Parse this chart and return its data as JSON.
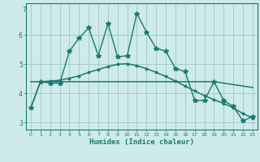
{
  "x": [
    0,
    1,
    2,
    3,
    4,
    5,
    6,
    7,
    8,
    9,
    10,
    11,
    12,
    13,
    14,
    15,
    16,
    17,
    18,
    19,
    20,
    21,
    22,
    23
  ],
  "line_zigzag": [
    3.5,
    4.4,
    4.35,
    4.35,
    5.45,
    5.9,
    6.25,
    5.3,
    6.4,
    5.25,
    5.3,
    6.75,
    6.1,
    5.55,
    5.45,
    4.85,
    4.75,
    3.75,
    3.75,
    4.4,
    3.75,
    3.55,
    3.05,
    3.2
  ],
  "line_bell": [
    3.5,
    4.4,
    4.42,
    4.45,
    4.52,
    4.6,
    4.72,
    4.82,
    4.92,
    5.0,
    5.02,
    4.95,
    4.85,
    4.72,
    4.58,
    4.42,
    4.25,
    4.08,
    3.92,
    3.78,
    3.65,
    3.5,
    3.3,
    3.15
  ],
  "line_flat": [
    4.4,
    4.4,
    4.4,
    4.4,
    4.4,
    4.4,
    4.4,
    4.4,
    4.4,
    4.4,
    4.4,
    4.4,
    4.4,
    4.4,
    4.4,
    4.4,
    4.4,
    4.4,
    4.4,
    4.4,
    4.35,
    4.3,
    4.25,
    4.2
  ],
  "color": "#1a7a6e",
  "bg_color": "#ceeaea",
  "grid_color": "#a8cccc",
  "xlabel": "Humidex (Indice chaleur)",
  "ylim": [
    2.75,
    7.1
  ],
  "xlim": [
    -0.5,
    23.5
  ],
  "yticks": [
    3,
    4,
    5,
    6
  ],
  "ytick_labels": [
    "3",
    "4",
    "5",
    "6"
  ],
  "xticks": [
    0,
    1,
    2,
    3,
    4,
    5,
    6,
    7,
    8,
    9,
    10,
    11,
    12,
    13,
    14,
    15,
    16,
    17,
    18,
    19,
    20,
    21,
    22,
    23
  ],
  "xtick_labels": [
    "0",
    "1",
    "2",
    "3",
    "4",
    "5",
    "6",
    "7",
    "8",
    "9",
    "10",
    "11",
    "12",
    "13",
    "14",
    "15",
    "16",
    "17",
    "18",
    "19",
    "20",
    "21",
    "22",
    "23"
  ]
}
